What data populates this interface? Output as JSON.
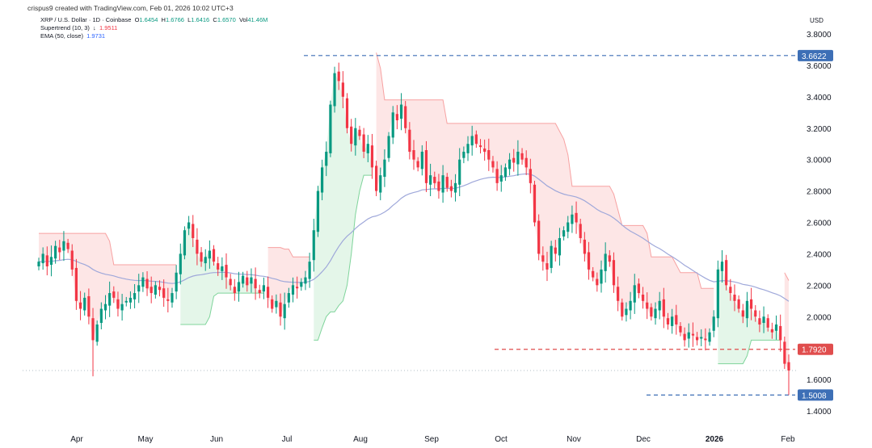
{
  "header": {
    "watermark": "crispus9 created with TradingView.com, Feb 01, 2026 10:02 UTC+3",
    "symbol_line": "XRP / U.S. Dollar · 1D · Coinbase",
    "ohlc": {
      "o_label": "O",
      "o": "1.6454",
      "h_label": "H",
      "h": "1.6766",
      "l_label": "L",
      "l": "1.6416",
      "c_label": "C",
      "c": "1.6570",
      "v_label": "Vol",
      "v": "41.46M"
    },
    "supertrend_label": "Supertrend (10, 3)",
    "supertrend_dir": "↓",
    "supertrend_value": "1.9511",
    "ema_label": "EMA (50, close)",
    "ema_value": "1.9731",
    "currency": "USD"
  },
  "colors": {
    "up": "#089981",
    "down": "#f23645",
    "supertrend_bear_fill": "#fde2e2",
    "supertrend_bull_fill": "#dff5e5",
    "ema": "#9fa8da",
    "level_blue": "#3d6fb6",
    "level_red": "#e04d4d"
  },
  "chart_data": {
    "type": "candlestick",
    "title": "XRP / U.S. Dollar · 1D · Coinbase",
    "ylim": [
      1.4,
      3.8
    ],
    "y_ticks": [
      "3.8000",
      "3.6000",
      "3.4000",
      "3.2000",
      "3.0000",
      "2.8000",
      "2.6000",
      "2.4000",
      "2.2000",
      "2.0000",
      "1.6000",
      "1.4000"
    ],
    "x_ticks": [
      "Apr",
      "May",
      "Jun",
      "Jul",
      "Aug",
      "Sep",
      "Oct",
      "Nov",
      "Dec",
      "2026",
      "Feb"
    ],
    "levels": [
      {
        "value": 3.6622,
        "label": "3.6622",
        "color": "blue",
        "style": "dashed"
      },
      {
        "value": 1.792,
        "label": "1.7920",
        "color": "red",
        "style": "dashed"
      },
      {
        "value": 1.5008,
        "label": "1.5008",
        "color": "blue",
        "style": "dashed"
      }
    ],
    "last_price": 1.657,
    "series": [
      {
        "name": "XRP / U.S. Dollar",
        "kind": "candles",
        "closes": [
          2.35,
          2.4,
          2.32,
          2.38,
          2.45,
          2.41,
          2.48,
          2.43,
          2.3,
          2.1,
          2.05,
          2.12,
          2.0,
          1.85,
          1.95,
          2.05,
          2.08,
          2.15,
          2.12,
          2.05,
          2.08,
          2.1,
          2.12,
          2.15,
          2.2,
          2.25,
          2.18,
          2.15,
          2.2,
          2.17,
          2.12,
          2.1,
          2.15,
          2.28,
          2.4,
          2.55,
          2.6,
          2.5,
          2.4,
          2.35,
          2.38,
          2.42,
          2.35,
          2.3,
          2.32,
          2.25,
          2.2,
          2.15,
          2.22,
          2.26,
          2.2,
          2.25,
          2.18,
          2.15,
          2.2,
          2.12,
          2.05,
          2.1,
          2.0,
          2.08,
          2.15,
          2.2,
          2.18,
          2.22,
          2.25,
          2.35,
          2.55,
          2.8,
          2.95,
          3.05,
          3.35,
          3.55,
          3.5,
          3.4,
          3.2,
          3.1,
          3.2,
          3.15,
          3.05,
          3.1,
          2.95,
          2.8,
          2.9,
          3.0,
          3.15,
          3.3,
          3.25,
          3.35,
          3.2,
          3.05,
          3.0,
          2.95,
          3.05,
          2.85,
          2.9,
          2.85,
          2.8,
          2.9,
          2.82,
          2.8,
          2.85,
          3.0,
          3.05,
          3.1,
          3.15,
          3.1,
          3.08,
          3.05,
          3.0,
          2.95,
          2.85,
          2.9,
          2.95,
          3.0,
          2.98,
          3.05,
          3.0,
          2.95,
          2.85,
          2.6,
          2.4,
          2.35,
          2.3,
          2.45,
          2.4,
          2.5,
          2.55,
          2.6,
          2.65,
          2.6,
          2.5,
          2.4,
          2.3,
          2.25,
          2.2,
          2.3,
          2.4,
          2.35,
          2.2,
          2.1,
          2.0,
          2.05,
          2.1,
          2.2,
          2.15,
          2.1,
          2.05,
          2.0,
          2.05,
          2.1,
          2.0,
          1.95,
          2.0,
          1.95,
          1.9,
          1.85,
          1.9,
          1.88,
          1.85,
          1.87,
          1.85,
          1.9,
          2.0,
          2.3,
          2.35,
          2.2,
          2.15,
          2.1,
          2.05,
          2.0,
          2.1,
          2.05,
          2.0,
          1.95,
          2.0,
          1.93,
          1.9,
          1.95,
          1.85,
          1.7,
          1.657
        ]
      },
      {
        "name": "EMA (50, close)",
        "kind": "line"
      },
      {
        "name": "Supertrend (10, 3)",
        "kind": "line"
      }
    ]
  }
}
